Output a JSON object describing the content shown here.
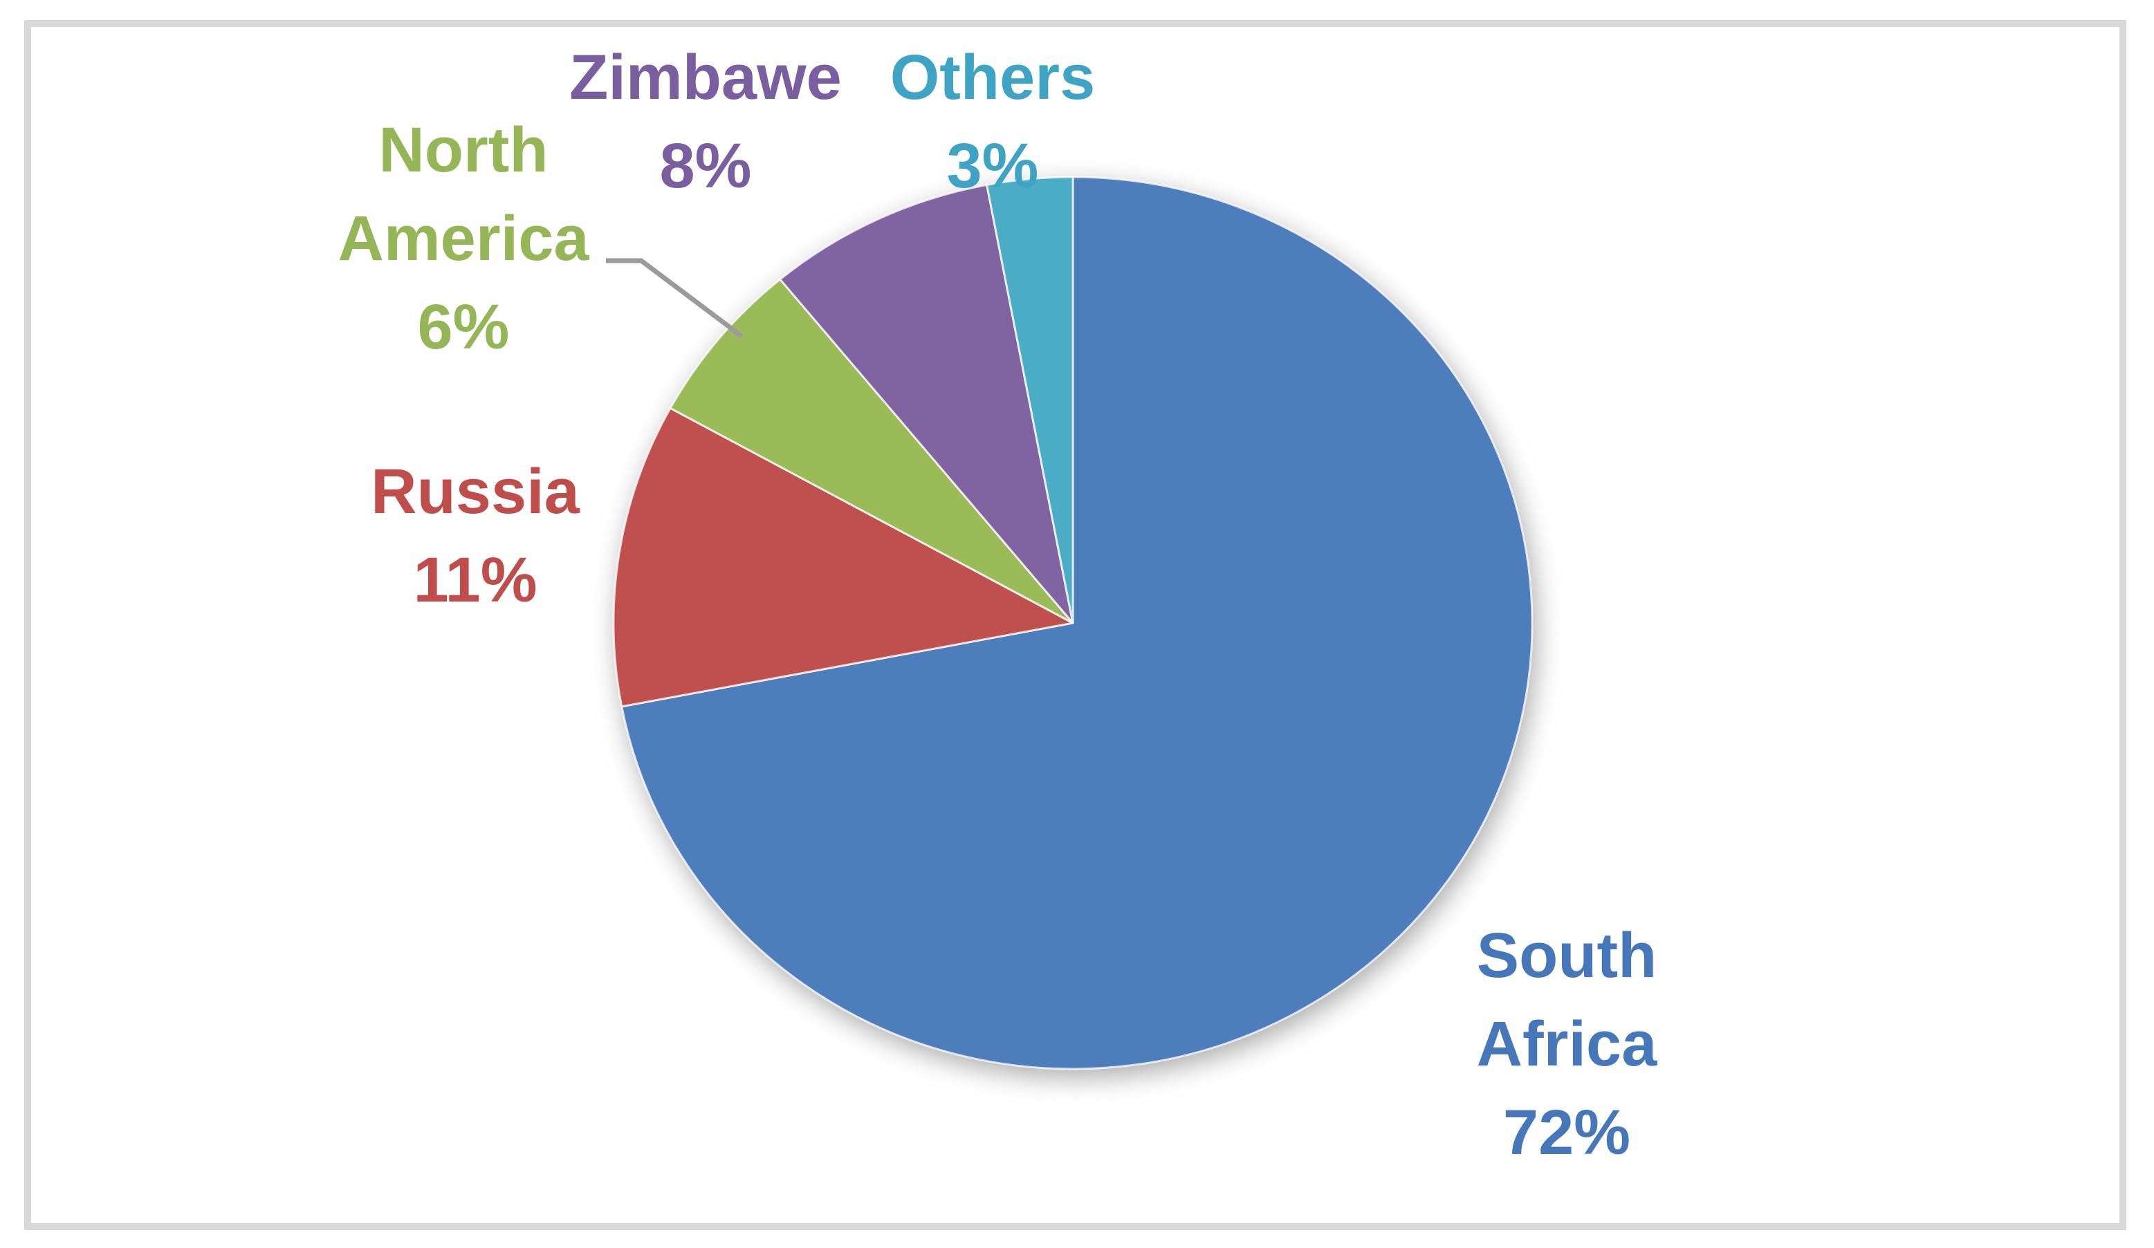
{
  "chart_data": {
    "type": "pie",
    "title": "",
    "legend_position": "none",
    "labels_style": "outside-with-percent",
    "start_angle_deg": 0,
    "direction": "clockwise",
    "background_color": "#FFFFFF",
    "border_color": "#D9D9D9",
    "leader_line_color": "#9B9B9B",
    "slices": [
      {
        "label": "South Africa",
        "pct_label": "72%",
        "value": 72,
        "color": "#4D7EBB",
        "text_color": "#4677B8"
      },
      {
        "label": "Russia",
        "pct_label": "11%",
        "value": 11,
        "color": "#C0504D",
        "text_color": "#BE4D4B"
      },
      {
        "label": "North America",
        "pct_label": "6%",
        "value": 6,
        "color": "#9BBB59",
        "text_color": "#94B656"
      },
      {
        "label": "Zimbawe",
        "pct_label": "8%",
        "value": 8,
        "color": "#8064A2",
        "text_color": "#7A5FA0"
      },
      {
        "label": "Others",
        "pct_label": "3%",
        "value": 3,
        "color": "#4BACC6",
        "text_color": "#3FA4C4"
      }
    ]
  }
}
